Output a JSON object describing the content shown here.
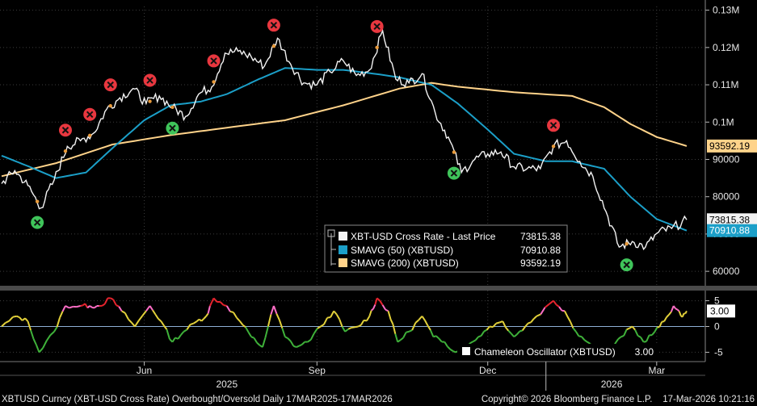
{
  "chart_data": [
    {
      "type": "line",
      "title": "",
      "x_domain": [
        "2025-03-17",
        "2026-03-17"
      ],
      "y_axis": {
        "position": "right",
        "ylim": [
          57000,
          131000
        ],
        "ticks": [
          60000,
          70000,
          80000,
          90000,
          100000,
          110000,
          120000,
          130000
        ],
        "tick_labels": [
          "60000",
          "70000",
          "80000",
          "90000",
          "0.1M",
          "0.11M",
          "0.12M",
          "0.13M"
        ]
      },
      "grid": true,
      "legend_position": "bottom-center",
      "series": [
        {
          "name": "XBT-USD Cross Rate - Last Price",
          "value_label": "73815.38",
          "color": "#f2f2f2",
          "points": [
            [
              "2025-03-17",
              83500
            ],
            [
              "2025-03-24",
              87000
            ],
            [
              "2025-03-31",
              83000
            ],
            [
              "2025-04-07",
              77000
            ],
            [
              "2025-04-14",
              84500
            ],
            [
              "2025-04-21",
              93500
            ],
            [
              "2025-04-28",
              95000
            ],
            [
              "2025-05-05",
              97000
            ],
            [
              "2025-05-12",
              103500
            ],
            [
              "2025-05-19",
              106500
            ],
            [
              "2025-05-26",
              109000
            ],
            [
              "2025-06-02",
              105000
            ],
            [
              "2025-06-09",
              107000
            ],
            [
              "2025-06-16",
              104000
            ],
            [
              "2025-06-23",
              101500
            ],
            [
              "2025-06-30",
              107500
            ],
            [
              "2025-07-07",
              109500
            ],
            [
              "2025-07-14",
              118500
            ],
            [
              "2025-07-21",
              119000
            ],
            [
              "2025-07-28",
              117500
            ],
            [
              "2025-08-04",
              115000
            ],
            [
              "2025-08-11",
              122500
            ],
            [
              "2025-08-18",
              115500
            ],
            [
              "2025-08-25",
              110500
            ],
            [
              "2025-09-01",
              110000
            ],
            [
              "2025-09-08",
              113500
            ],
            [
              "2025-09-15",
              116500
            ],
            [
              "2025-09-22",
              112500
            ],
            [
              "2025-09-29",
              114000
            ],
            [
              "2025-10-06",
              124500
            ],
            [
              "2025-10-13",
              111500
            ],
            [
              "2025-10-20",
              110500
            ],
            [
              "2025-10-27",
              113000
            ],
            [
              "2025-11-03",
              102500
            ],
            [
              "2025-11-10",
              96000
            ],
            [
              "2025-11-17",
              86500
            ],
            [
              "2025-11-24",
              90000
            ],
            [
              "2025-12-01",
              91500
            ],
            [
              "2025-12-08",
              92000
            ],
            [
              "2025-12-15",
              88000
            ],
            [
              "2025-12-22",
              87500
            ],
            [
              "2025-12-29",
              87500
            ],
            [
              "2026-01-05",
              93500
            ],
            [
              "2026-01-12",
              95000
            ],
            [
              "2026-01-19",
              89500
            ],
            [
              "2026-01-26",
              85500
            ],
            [
              "2026-02-02",
              76000
            ],
            [
              "2026-02-09",
              66500
            ],
            [
              "2026-02-16",
              68000
            ],
            [
              "2026-02-23",
              66500
            ],
            [
              "2026-03-02",
              70500
            ],
            [
              "2026-03-09",
              71500
            ],
            [
              "2026-03-17",
              73815
            ]
          ]
        },
        {
          "name": "SMAVG (50) (XBTUSD)",
          "value_label": "70910.88",
          "color": "#1b9fc8",
          "points": [
            [
              "2025-03-17",
              91000
            ],
            [
              "2025-04-01",
              88000
            ],
            [
              "2025-04-15",
              85000
            ],
            [
              "2025-05-01",
              86500
            ],
            [
              "2025-05-15",
              93000
            ],
            [
              "2025-06-01",
              100500
            ],
            [
              "2025-06-15",
              104500
            ],
            [
              "2025-07-01",
              105500
            ],
            [
              "2025-07-15",
              107500
            ],
            [
              "2025-08-01",
              111500
            ],
            [
              "2025-08-15",
              114500
            ],
            [
              "2025-09-01",
              114000
            ],
            [
              "2025-09-15",
              114000
            ],
            [
              "2025-10-01",
              113000
            ],
            [
              "2025-10-15",
              112000
            ],
            [
              "2025-11-01",
              110000
            ],
            [
              "2025-11-15",
              105000
            ],
            [
              "2025-12-01",
              98000
            ],
            [
              "2025-12-15",
              91500
            ],
            [
              "2026-01-01",
              89500
            ],
            [
              "2026-01-15",
              89500
            ],
            [
              "2026-02-01",
              87500
            ],
            [
              "2026-02-15",
              80000
            ],
            [
              "2026-03-01",
              74000
            ],
            [
              "2026-03-17",
              70910
            ]
          ]
        },
        {
          "name": "SMAVG (200) (XBTUSD)",
          "value_label": "93592.19",
          "color": "#ffd38a",
          "points": [
            [
              "2025-03-17",
              85500
            ],
            [
              "2025-04-15",
              89000
            ],
            [
              "2025-05-15",
              94000
            ],
            [
              "2025-06-15",
              96500
            ],
            [
              "2025-07-15",
              98500
            ],
            [
              "2025-08-15",
              100500
            ],
            [
              "2025-09-15",
              104500
            ],
            [
              "2025-10-15",
              109000
            ],
            [
              "2025-11-01",
              110500
            ],
            [
              "2025-11-15",
              109500
            ],
            [
              "2025-12-15",
              108000
            ],
            [
              "2026-01-15",
              107000
            ],
            [
              "2026-02-01",
              104000
            ],
            [
              "2026-02-15",
              99500
            ],
            [
              "2026-03-01",
              96000
            ],
            [
              "2026-03-17",
              93592
            ]
          ]
        }
      ],
      "signals": {
        "overbought": [
          "2025-04-20",
          "2025-05-03",
          "2025-05-14",
          "2025-06-04",
          "2025-07-08",
          "2025-08-09",
          "2025-10-03",
          "2026-01-05"
        ],
        "oversold": [
          "2025-04-05",
          "2025-06-16",
          "2025-11-13",
          "2026-02-13"
        ]
      }
    },
    {
      "type": "line",
      "title": "",
      "y_axis": {
        "position": "right",
        "ylim": [
          -6.5,
          6.5
        ],
        "ticks": [
          -5,
          0,
          5
        ],
        "tick_labels": [
          "-5",
          "0",
          "5"
        ]
      },
      "legend_position": "bottom-right",
      "series": [
        {
          "name": "Chameleon Oscillator (XBTUSD)",
          "value_label": "3.00",
          "colors": {
            "red": "#e8242e",
            "pink": "#ff6ec7",
            "yellow": "#e3d13a",
            "green": "#3fb23a"
          },
          "points": [
            [
              "2025-03-17",
              0
            ],
            [
              "2025-03-25",
              2
            ],
            [
              "2025-03-31",
              1
            ],
            [
              "2025-04-06",
              -5
            ],
            [
              "2025-04-14",
              -1
            ],
            [
              "2025-04-20",
              4
            ],
            [
              "2025-04-28",
              4
            ],
            [
              "2025-05-03",
              4
            ],
            [
              "2025-05-08",
              4
            ],
            [
              "2025-05-14",
              5.5
            ],
            [
              "2025-05-20",
              3
            ],
            [
              "2025-05-27",
              0
            ],
            [
              "2025-06-04",
              4
            ],
            [
              "2025-06-10",
              1
            ],
            [
              "2025-06-16",
              -3
            ],
            [
              "2025-06-22",
              -1
            ],
            [
              "2025-06-29",
              1
            ],
            [
              "2025-07-04",
              2
            ],
            [
              "2025-07-08",
              5.5
            ],
            [
              "2025-07-15",
              4
            ],
            [
              "2025-07-22",
              1
            ],
            [
              "2025-07-28",
              -2
            ],
            [
              "2025-08-03",
              -4
            ],
            [
              "2025-08-09",
              4
            ],
            [
              "2025-08-15",
              -2
            ],
            [
              "2025-08-21",
              -4
            ],
            [
              "2025-08-27",
              -3
            ],
            [
              "2025-09-03",
              0
            ],
            [
              "2025-09-10",
              3
            ],
            [
              "2025-09-16",
              -1
            ],
            [
              "2025-09-23",
              0
            ],
            [
              "2025-09-29",
              2
            ],
            [
              "2025-10-03",
              5.5
            ],
            [
              "2025-10-09",
              3
            ],
            [
              "2025-10-14",
              -3
            ],
            [
              "2025-10-20",
              -1
            ],
            [
              "2025-10-27",
              2
            ],
            [
              "2025-11-02",
              -2
            ],
            [
              "2025-11-08",
              -3
            ],
            [
              "2025-11-14",
              -5
            ],
            [
              "2025-11-20",
              -4
            ],
            [
              "2025-11-26",
              -2
            ],
            [
              "2025-12-02",
              0
            ],
            [
              "2025-12-09",
              1
            ],
            [
              "2025-12-15",
              -2
            ],
            [
              "2025-12-21",
              0
            ],
            [
              "2025-12-27",
              2
            ],
            [
              "2026-01-05",
              5
            ],
            [
              "2026-01-11",
              3
            ],
            [
              "2026-01-17",
              -1
            ],
            [
              "2026-01-23",
              -3
            ],
            [
              "2026-01-29",
              -5
            ],
            [
              "2026-02-04",
              -5
            ],
            [
              "2026-02-10",
              -2
            ],
            [
              "2026-02-16",
              0
            ],
            [
              "2026-02-22",
              -3
            ],
            [
              "2026-02-28",
              -1
            ],
            [
              "2026-03-05",
              1
            ],
            [
              "2026-03-10",
              4
            ],
            [
              "2026-03-14",
              2
            ],
            [
              "2026-03-17",
              3
            ]
          ]
        }
      ]
    }
  ],
  "axis": {
    "month_labels": [
      {
        "label": "Jun",
        "date": "2025-06-01"
      },
      {
        "label": "Sep",
        "date": "2025-09-01"
      },
      {
        "label": "Dec",
        "date": "2025-12-01"
      },
      {
        "label": "Mar",
        "date": "2026-03-01"
      }
    ],
    "year_labels": [
      {
        "label": "2025",
        "date": "2025-07-15"
      },
      {
        "label": "2026",
        "date": "2026-02-05"
      }
    ]
  },
  "footer": {
    "left": "XBTUSD Curncy (XBT-USD Cross Rate) Overbought/Oversold Daily 17MAR2025-17MAR2026",
    "right": "Copyright© 2026 Bloomberg Finance L.P.    17-Mar-2026 10:21:16"
  },
  "colors": {
    "overbought_marker": "#e8373f",
    "oversold_marker": "#3fc45a",
    "background": "#000000"
  }
}
